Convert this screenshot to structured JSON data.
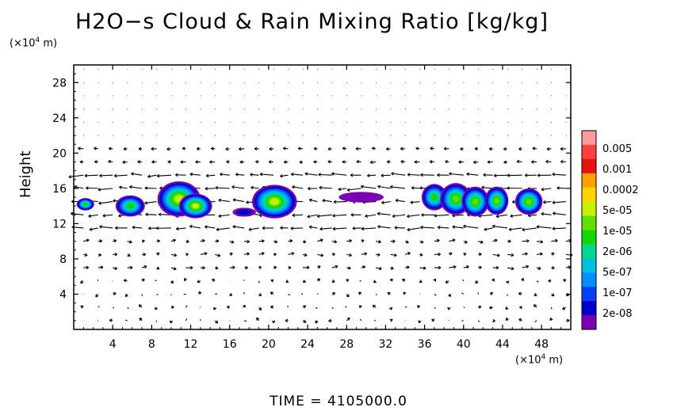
{
  "chart_data": {
    "type": "heatmap",
    "title": "H2O−s Cloud & Rain Mixing Ratio [kg/kg]",
    "ylabel": "Height",
    "y_unit_prefix": "(×10",
    "y_unit_exp": "4",
    "y_unit_suffix": " m)",
    "x_unit_prefix": "(×10",
    "x_unit_exp": "4",
    "x_unit_suffix": " m)",
    "x_ticks": [
      "4",
      "8",
      "12",
      "16",
      "20",
      "24",
      "28",
      "32",
      "36",
      "40",
      "44",
      "48"
    ],
    "y_ticks": [
      "4",
      "8",
      "12",
      "16",
      "20",
      "24",
      "28"
    ],
    "xlim": [
      0,
      51
    ],
    "ylim": [
      0,
      30
    ],
    "colorbar_labels": [
      "0.005",
      "0.001",
      "0.0002",
      "5e-05",
      "1e-05",
      "2e-06",
      "5e-07",
      "1e-07",
      "2e-08"
    ],
    "colorbar_colors": [
      "#ff9a9a",
      "#ff4040",
      "#e81010",
      "#ffa000",
      "#ffd400",
      "#c8f000",
      "#60e000",
      "#10d800",
      "#00d890",
      "#00c0e0",
      "#0090ff",
      "#0040ff",
      "#0000c8",
      "#7a00b4"
    ],
    "cloud_cells": [
      {
        "x": 1.2,
        "y": 14.2,
        "rx": 0.9,
        "ry": 0.7,
        "level": 6
      },
      {
        "x": 5.8,
        "y": 14.0,
        "rx": 1.5,
        "ry": 1.2,
        "level": 6
      },
      {
        "x": 10.8,
        "y": 14.8,
        "rx": 2.2,
        "ry": 2.0,
        "level": 8
      },
      {
        "x": 12.5,
        "y": 14.0,
        "rx": 1.7,
        "ry": 1.4,
        "level": 8
      },
      {
        "x": 17.5,
        "y": 13.3,
        "rx": 1.2,
        "ry": 0.5,
        "level": 1
      },
      {
        "x": 20.6,
        "y": 14.5,
        "rx": 2.3,
        "ry": 1.9,
        "level": 8
      },
      {
        "x": 29.5,
        "y": 15.0,
        "rx": 2.3,
        "ry": 0.6,
        "level": 0
      },
      {
        "x": 37.0,
        "y": 15.0,
        "rx": 1.3,
        "ry": 1.5,
        "level": 6
      },
      {
        "x": 39.2,
        "y": 14.8,
        "rx": 1.6,
        "ry": 1.8,
        "level": 7
      },
      {
        "x": 41.2,
        "y": 14.5,
        "rx": 1.4,
        "ry": 1.7,
        "level": 7
      },
      {
        "x": 43.4,
        "y": 14.6,
        "rx": 1.2,
        "ry": 1.6,
        "level": 7
      },
      {
        "x": 46.7,
        "y": 14.5,
        "rx": 1.4,
        "ry": 1.5,
        "level": 7
      }
    ],
    "time_label": "TIME  =  4105000.0"
  }
}
